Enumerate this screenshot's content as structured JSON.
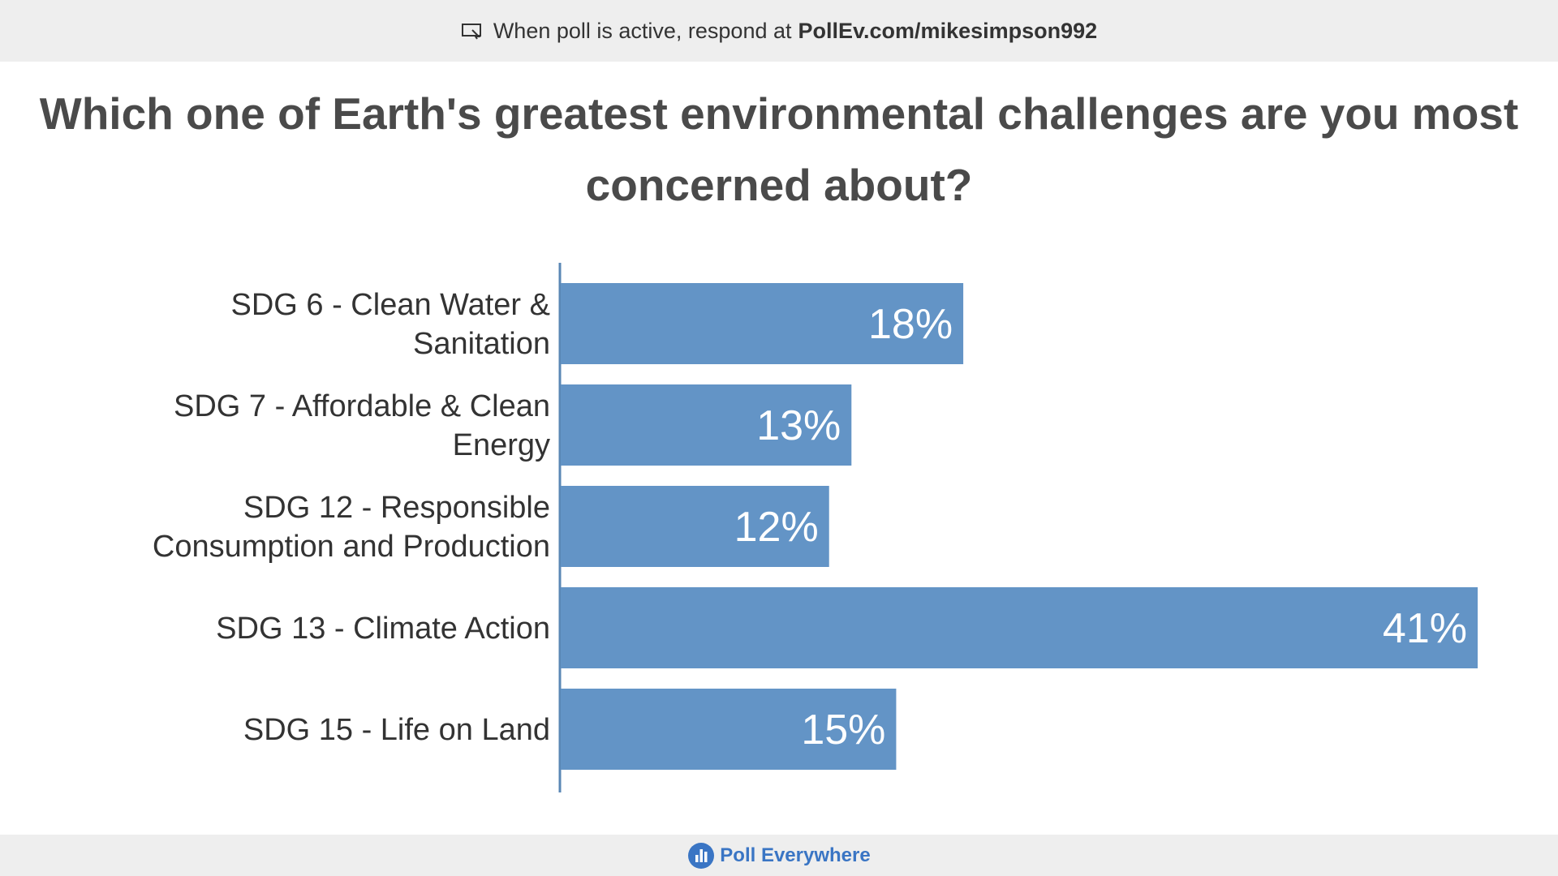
{
  "banner": {
    "prefix": "When poll is active, respond at",
    "url": "PollEv.com/mikesimpson992"
  },
  "question": "Which one of Earth's greatest environmental challenges are you most concerned about?",
  "footer": {
    "brand": "Poll Everywhere"
  },
  "colors": {
    "bar": "#6394c6",
    "axis": "#5a87b5",
    "label": "#333333",
    "value": "#ffffff"
  },
  "chart_data": {
    "type": "bar",
    "orientation": "horizontal",
    "categories": [
      [
        "SDG 6 - Clean Water &",
        "Sanitation"
      ],
      [
        "SDG 7 - Affordable & Clean",
        "Energy"
      ],
      [
        "SDG 12 - Responsible",
        "Consumption and Production"
      ],
      [
        "SDG 13 - Climate Action"
      ],
      [
        "SDG 15 - Life on Land"
      ]
    ],
    "values": [
      18,
      13,
      12,
      41,
      15
    ],
    "value_labels": [
      "18%",
      "13%",
      "12%",
      "41%",
      "15%"
    ],
    "unit": "%",
    "xlim": [
      0,
      41
    ]
  }
}
